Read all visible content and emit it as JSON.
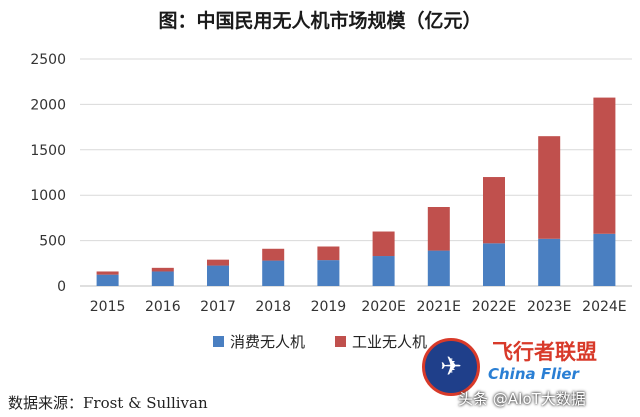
{
  "chart_data": {
    "type": "bar",
    "stacked": true,
    "title": "图：中国民用无人机市场规模（亿元）",
    "categories": [
      "2015",
      "2016",
      "2017",
      "2018",
      "2019",
      "2020E",
      "2021E",
      "2022E",
      "2023E",
      "2024E"
    ],
    "series": [
      {
        "name": "消费无人机",
        "color": "#4a7fc1",
        "values": [
          125,
          160,
          225,
          280,
          285,
          330,
          390,
          470,
          520,
          575
        ]
      },
      {
        "name": "工业无人机",
        "color": "#c0504d",
        "values": [
          35,
          40,
          65,
          130,
          150,
          270,
          480,
          730,
          1130,
          1500
        ]
      }
    ],
    "yticks": [
      "0",
      "500",
      "1000",
      "1500",
      "2000",
      "2500"
    ],
    "ylim": [
      0,
      2500
    ],
    "grid": true,
    "legend_position": "bottom"
  },
  "source": "数据来源：Frost & Sullivan",
  "watermark": {
    "brand": "飞行者联盟",
    "domain": "China Flier",
    "credit": "头条 @AIoT大数据"
  }
}
